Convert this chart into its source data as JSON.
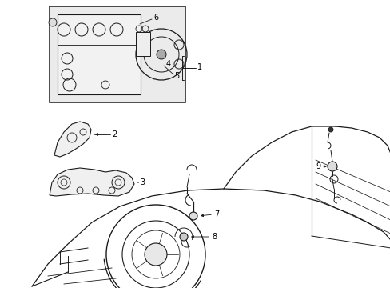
{
  "bg_color": "#ffffff",
  "line_color": "#1a1a1a",
  "label_color": "#000000",
  "box_bg": "#ebebeb",
  "fig_width": 4.89,
  "fig_height": 3.6,
  "dpi": 100
}
